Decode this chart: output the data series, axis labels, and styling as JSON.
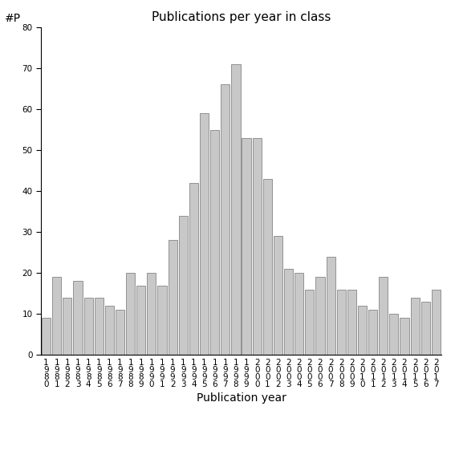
{
  "title": "Publications per year in class",
  "xlabel": "Publication year",
  "ylabel": "#P",
  "years": [
    1980,
    1981,
    1982,
    1983,
    1984,
    1985,
    1986,
    1987,
    1988,
    1989,
    1990,
    1991,
    1992,
    1993,
    1994,
    1995,
    1996,
    1997,
    1998,
    1999,
    2000,
    2001,
    2002,
    2003,
    2004,
    2005,
    2006,
    2007,
    2008,
    2009,
    2010,
    2011,
    2012,
    2013,
    2014,
    2015,
    2016,
    2017
  ],
  "values": [
    9,
    19,
    14,
    18,
    14,
    14,
    12,
    11,
    20,
    17,
    20,
    17,
    28,
    34,
    42,
    59,
    55,
    66,
    71,
    53,
    53,
    43,
    29,
    21,
    20,
    16,
    19,
    24,
    16,
    16,
    12,
    11,
    19,
    10,
    9,
    14,
    13,
    16
  ],
  "bar_color": "#c8c8c8",
  "bar_edge_color": "#555555",
  "ylim": [
    0,
    80
  ],
  "yticks": [
    0,
    10,
    20,
    30,
    40,
    50,
    60,
    70,
    80
  ],
  "background_color": "#ffffff",
  "title_fontsize": 11,
  "axis_label_fontsize": 10,
  "tick_fontsize": 7.5
}
